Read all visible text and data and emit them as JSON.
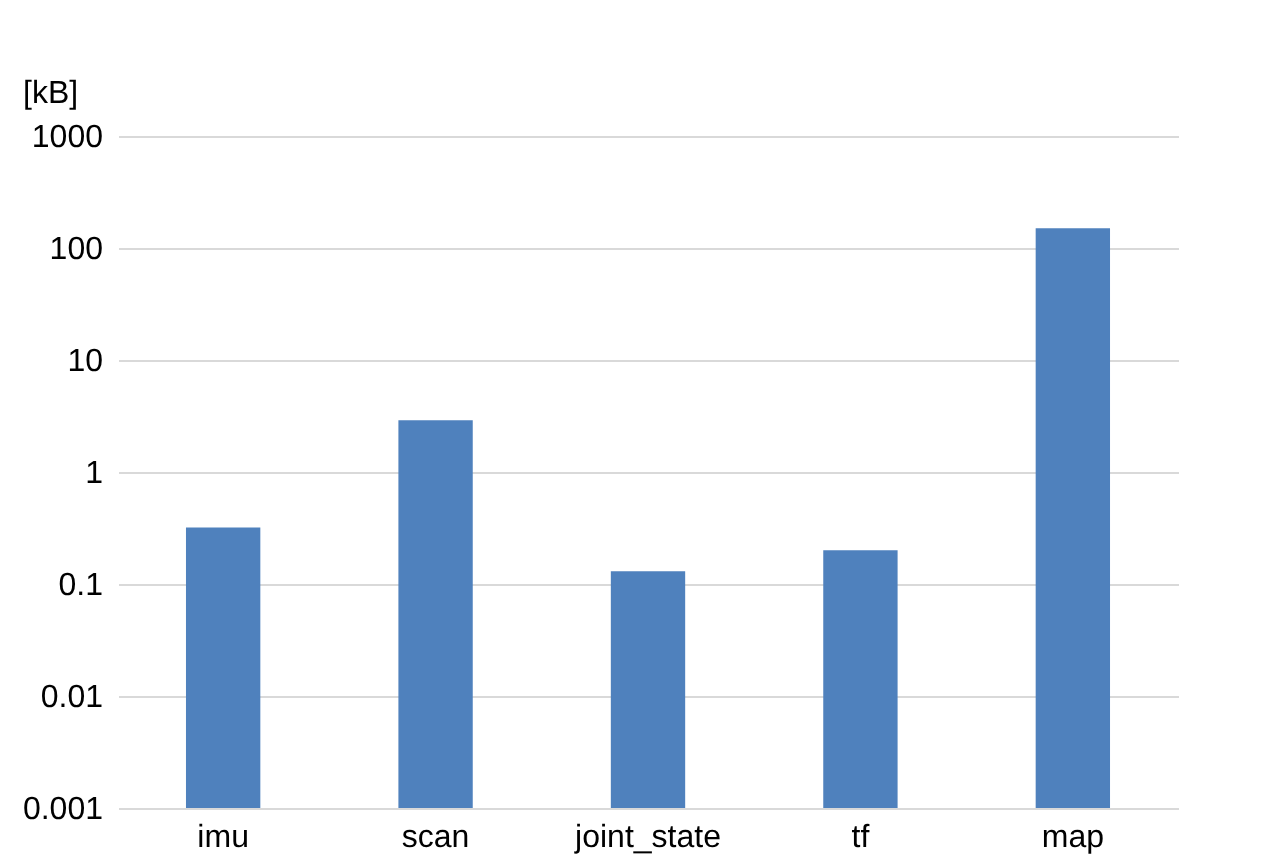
{
  "chart_data": {
    "type": "bar",
    "ylabel": "[kB]",
    "categories": [
      "imu",
      "scan",
      "joint_state",
      "tf",
      "map"
    ],
    "values": [
      0.32,
      2.9,
      0.13,
      0.2,
      150
    ],
    "color": "#4f81bd",
    "log": true,
    "ylim": [
      0.001,
      1000
    ],
    "yticks": [
      0.001,
      0.01,
      0.1,
      1,
      10,
      100,
      1000
    ],
    "grid": "y"
  }
}
